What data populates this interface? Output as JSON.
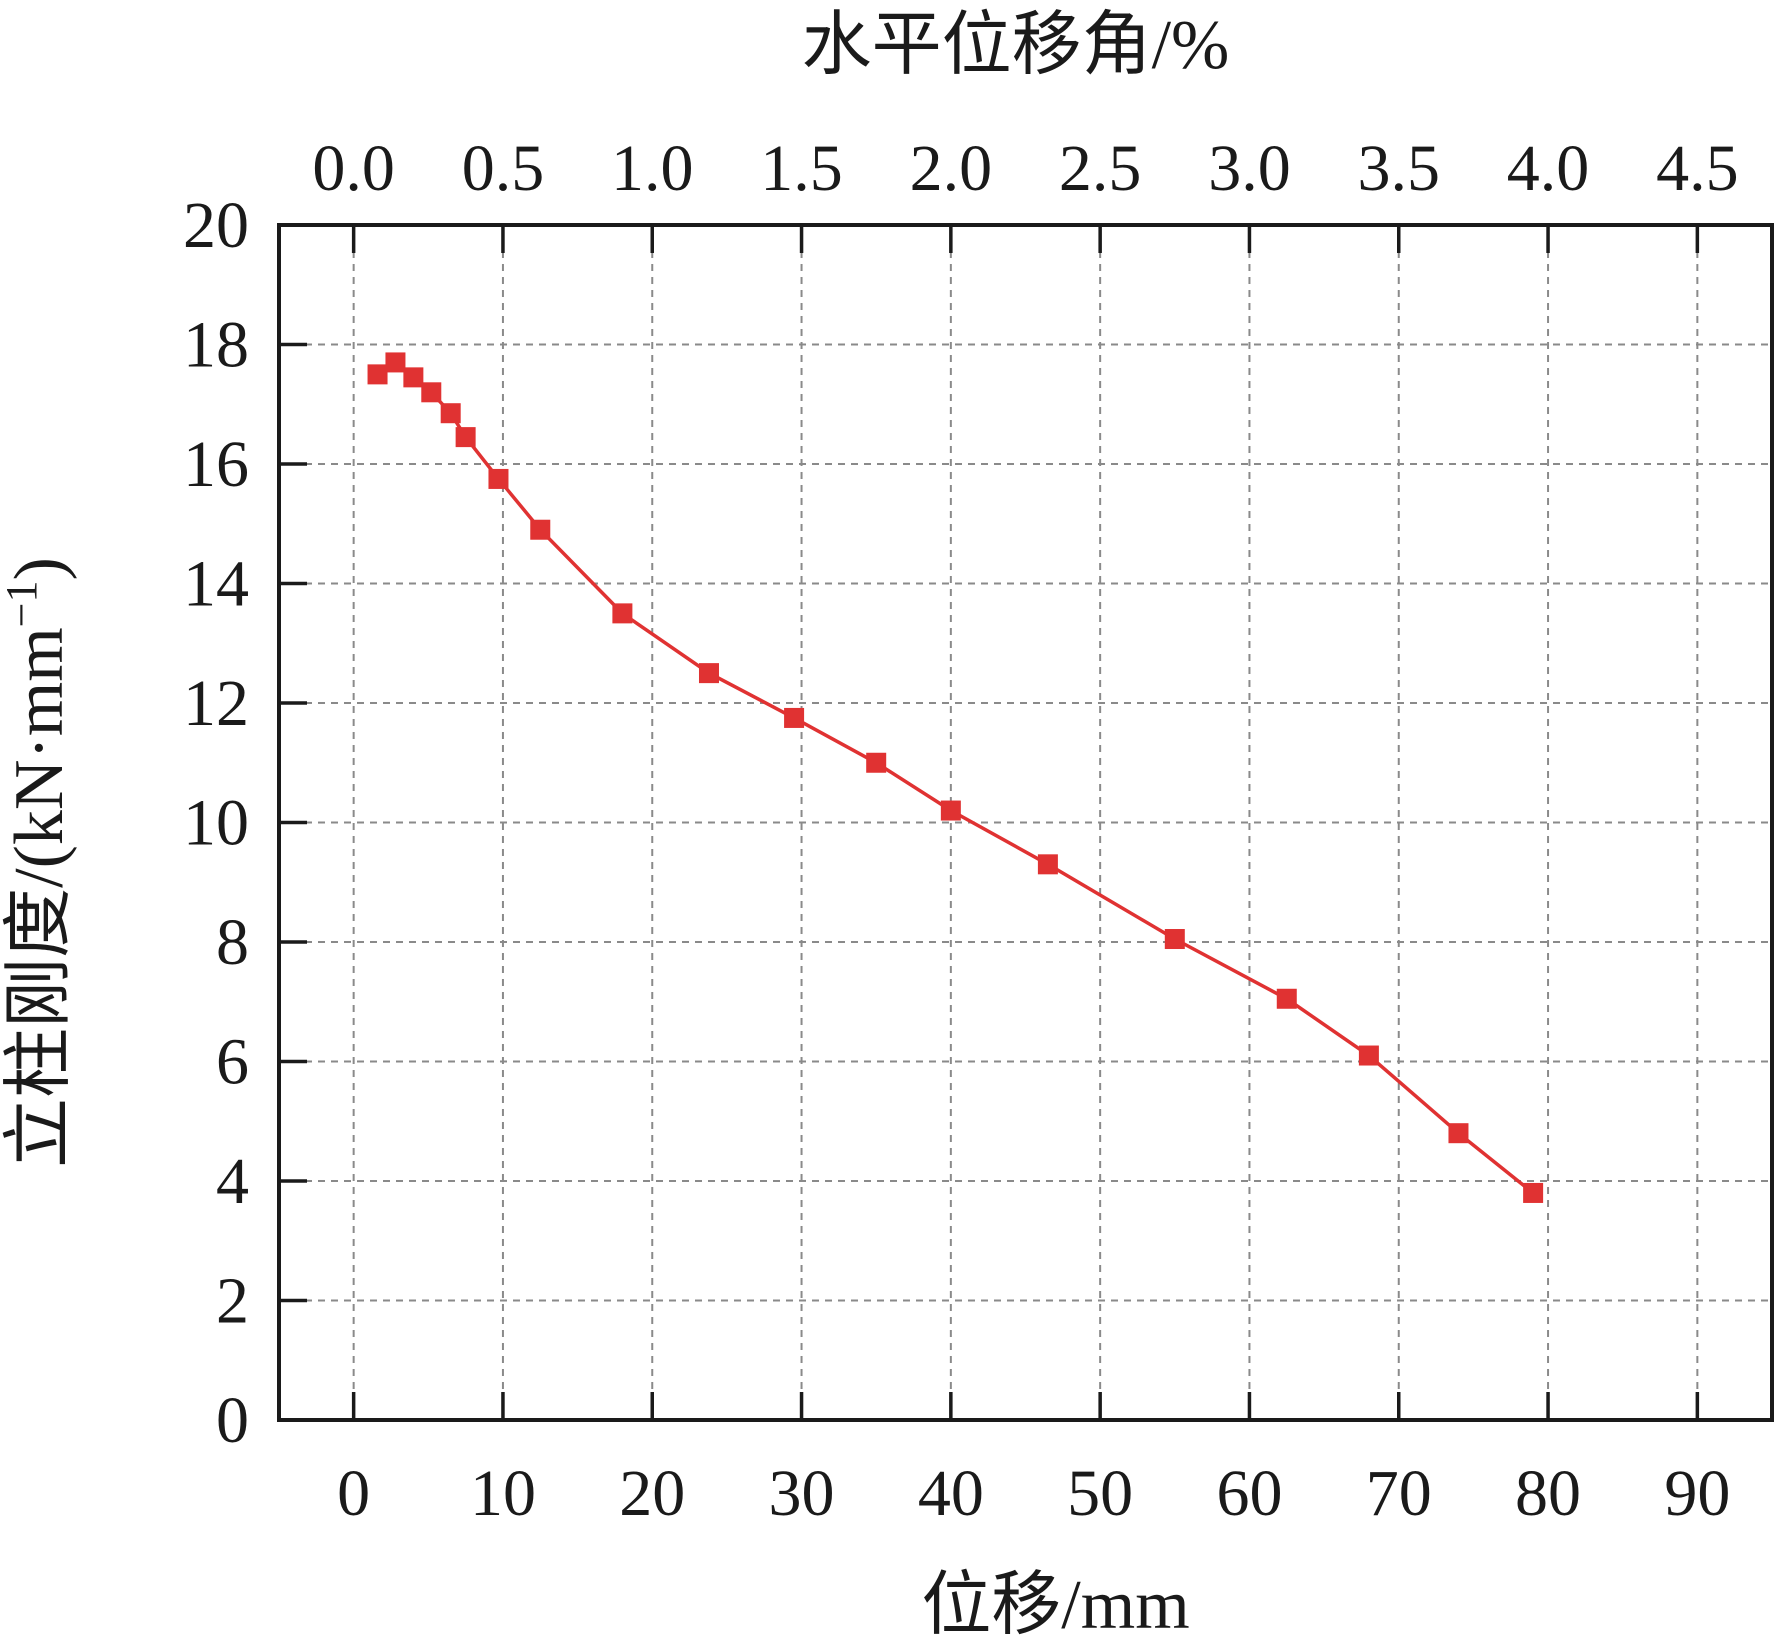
{
  "chart_data": {
    "type": "line",
    "xlabel": "位移/mm",
    "ylabel": "立柱刚度/(kN·mm",
    "ylabel_sup": "−1",
    "ylabel_close": ")",
    "x2label": "水平位移角/%",
    "xlim": [
      -5,
      95
    ],
    "ylim": [
      0,
      20
    ],
    "x_ticks": [
      "0",
      "10",
      "20",
      "30",
      "40",
      "50",
      "60",
      "70",
      "80",
      "90"
    ],
    "y_ticks": [
      "0",
      "2",
      "4",
      "6",
      "8",
      "10",
      "12",
      "14",
      "16",
      "18",
      "20"
    ],
    "x2_ticks": [
      {
        "label": "0.0",
        "x": 0
      },
      {
        "label": "0.5",
        "x": 10
      },
      {
        "label": "1.0",
        "x": 20
      },
      {
        "label": "1.5",
        "x": 30
      },
      {
        "label": "2.0",
        "x": 40
      },
      {
        "label": "2.5",
        "x": 50
      },
      {
        "label": "3.0",
        "x": 60
      },
      {
        "label": "3.5",
        "x": 70
      },
      {
        "label": "4.0",
        "x": 80
      },
      {
        "label": "4.5",
        "x": 90
      }
    ],
    "grid": true,
    "series": [
      {
        "color": "#e03232",
        "marker": "square",
        "x": [
          1.6,
          2.8,
          4.0,
          5.2,
          6.5,
          7.5,
          9.7,
          12.5,
          18.0,
          23.8,
          29.5,
          35.0,
          40.0,
          46.5,
          55.0,
          62.5,
          68.0,
          74.0,
          79.0
        ],
        "y": [
          17.5,
          17.7,
          17.45,
          17.2,
          16.85,
          16.45,
          15.75,
          14.9,
          13.5,
          12.5,
          11.75,
          11.0,
          10.2,
          9.3,
          8.05,
          7.05,
          6.1,
          4.8,
          3.8
        ]
      }
    ]
  }
}
